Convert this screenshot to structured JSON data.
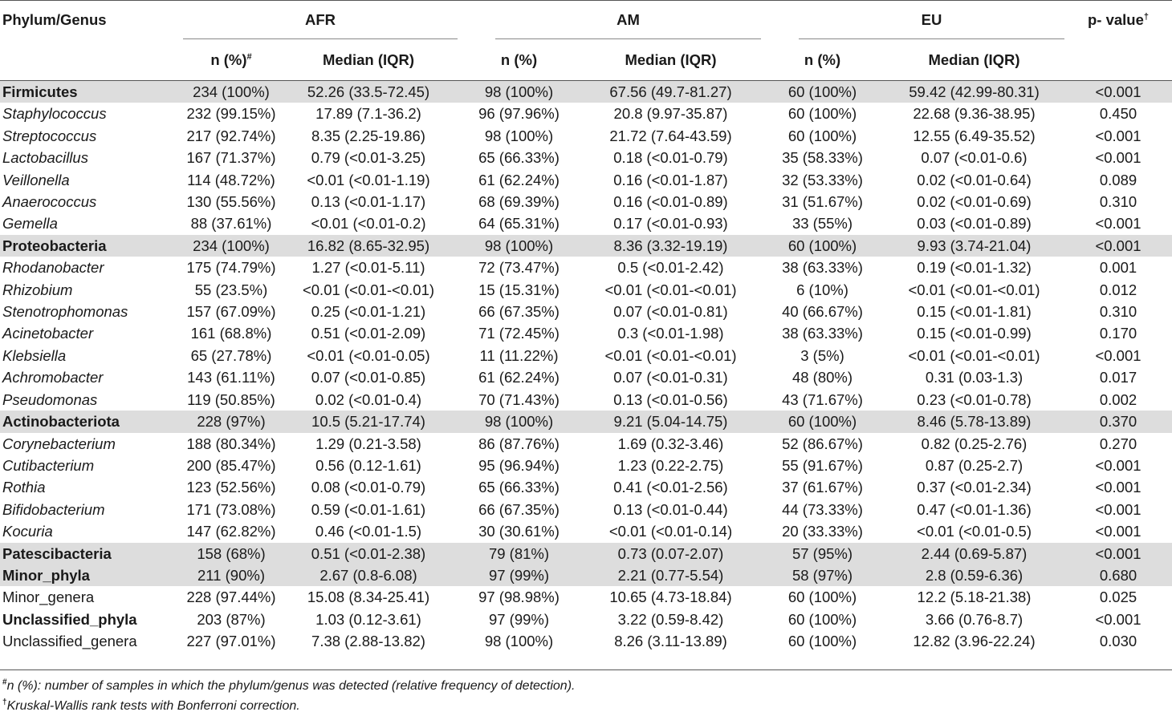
{
  "header": {
    "phylum_genus": "Phylum/Genus",
    "groups": [
      "AFR",
      "AM",
      "EU"
    ],
    "p_value": "p- value",
    "p_value_mark": "†",
    "n_pct_first": "n (%)",
    "n_pct_mark": "#",
    "n_pct": "n (%)",
    "median": "Median (IQR)"
  },
  "rows": [
    {
      "type": "phylum",
      "name": "Firmicutes",
      "afr_n": "234 (100%)",
      "afr_m": "52.26 (33.5-72.45)",
      "am_n": "98 (100%)",
      "am_m": "67.56 (49.7-81.27)",
      "eu_n": "60 (100%)",
      "eu_m": "59.42 (42.99-80.31)",
      "p": "<0.001"
    },
    {
      "type": "genus",
      "name": "Staphylococcus",
      "afr_n": "232 (99.15%)",
      "afr_m": "17.89 (7.1-36.2)",
      "am_n": "96 (97.96%)",
      "am_m": "20.8 (9.97-35.87)",
      "eu_n": "60 (100%)",
      "eu_m": "22.68 (9.36-38.95)",
      "p": "0.450"
    },
    {
      "type": "genus",
      "name": "Streptococcus",
      "afr_n": "217 (92.74%)",
      "afr_m": "8.35 (2.25-19.86)",
      "am_n": "98 (100%)",
      "am_m": "21.72 (7.64-43.59)",
      "eu_n": "60 (100%)",
      "eu_m": "12.55 (6.49-35.52)",
      "p": "<0.001"
    },
    {
      "type": "genus",
      "name": "Lactobacillus",
      "afr_n": "167 (71.37%)",
      "afr_m": "0.79 (<0.01-3.25)",
      "am_n": "65 (66.33%)",
      "am_m": "0.18 (<0.01-0.79)",
      "eu_n": "35 (58.33%)",
      "eu_m": "0.07 (<0.01-0.6)",
      "p": "<0.001"
    },
    {
      "type": "genus",
      "name": "Veillonella",
      "afr_n": "114 (48.72%)",
      "afr_m": "<0.01 (<0.01-1.19)",
      "am_n": "61 (62.24%)",
      "am_m": "0.16 (<0.01-1.87)",
      "eu_n": "32 (53.33%)",
      "eu_m": "0.02 (<0.01-0.64)",
      "p": "0.089"
    },
    {
      "type": "genus",
      "name": "Anaerococcus",
      "afr_n": "130 (55.56%)",
      "afr_m": "0.13 (<0.01-1.17)",
      "am_n": "68 (69.39%)",
      "am_m": "0.16 (<0.01-0.89)",
      "eu_n": "31 (51.67%)",
      "eu_m": "0.02 (<0.01-0.69)",
      "p": "0.310"
    },
    {
      "type": "genus",
      "name": "Gemella",
      "afr_n": "88 (37.61%)",
      "afr_m": "<0.01 (<0.01-0.2)",
      "am_n": "64 (65.31%)",
      "am_m": "0.17 (<0.01-0.93)",
      "eu_n": "33 (55%)",
      "eu_m": "0.03 (<0.01-0.89)",
      "p": "<0.001"
    },
    {
      "type": "phylum",
      "name": "Proteobacteria",
      "afr_n": "234 (100%)",
      "afr_m": "16.82 (8.65-32.95)",
      "am_n": "98 (100%)",
      "am_m": "8.36 (3.32-19.19)",
      "eu_n": "60 (100%)",
      "eu_m": "9.93 (3.74-21.04)",
      "p": "<0.001"
    },
    {
      "type": "genus",
      "name": "Rhodanobacter",
      "afr_n": "175 (74.79%)",
      "afr_m": "1.27 (<0.01-5.11)",
      "am_n": "72 (73.47%)",
      "am_m": "0.5 (<0.01-2.42)",
      "eu_n": "38 (63.33%)",
      "eu_m": "0.19 (<0.01-1.32)",
      "p": "0.001"
    },
    {
      "type": "genus",
      "name": "Rhizobium",
      "afr_n": "55 (23.5%)",
      "afr_m": "<0.01 (<0.01-<0.01)",
      "am_n": "15 (15.31%)",
      "am_m": "<0.01 (<0.01-<0.01)",
      "eu_n": "6 (10%)",
      "eu_m": "<0.01 (<0.01-<0.01)",
      "p": "0.012"
    },
    {
      "type": "genus",
      "name": "Stenotrophomonas",
      "afr_n": "157 (67.09%)",
      "afr_m": "0.25 (<0.01-1.21)",
      "am_n": "66 (67.35%)",
      "am_m": "0.07 (<0.01-0.81)",
      "eu_n": "40 (66.67%)",
      "eu_m": "0.15 (<0.01-1.81)",
      "p": "0.310"
    },
    {
      "type": "genus",
      "name": "Acinetobacter",
      "afr_n": "161 (68.8%)",
      "afr_m": "0.51 (<0.01-2.09)",
      "am_n": "71 (72.45%)",
      "am_m": "0.3 (<0.01-1.98)",
      "eu_n": "38 (63.33%)",
      "eu_m": "0.15 (<0.01-0.99)",
      "p": "0.170"
    },
    {
      "type": "genus",
      "name": "Klebsiella",
      "afr_n": "65 (27.78%)",
      "afr_m": "<0.01 (<0.01-0.05)",
      "am_n": "11 (11.22%)",
      "am_m": "<0.01 (<0.01-<0.01)",
      "eu_n": "3 (5%)",
      "eu_m": "<0.01 (<0.01-<0.01)",
      "p": "<0.001"
    },
    {
      "type": "genus",
      "name": "Achromobacter",
      "afr_n": "143 (61.11%)",
      "afr_m": "0.07 (<0.01-0.85)",
      "am_n": "61 (62.24%)",
      "am_m": "0.07 (<0.01-0.31)",
      "eu_n": "48 (80%)",
      "eu_m": "0.31 (0.03-1.3)",
      "p": "0.017"
    },
    {
      "type": "genus",
      "name": "Pseudomonas",
      "afr_n": "119 (50.85%)",
      "afr_m": "0.02 (<0.01-0.4)",
      "am_n": "70 (71.43%)",
      "am_m": "0.13 (<0.01-0.56)",
      "eu_n": "43 (71.67%)",
      "eu_m": "0.23 (<0.01-0.78)",
      "p": "0.002"
    },
    {
      "type": "phylum",
      "name": "Actinobacteriota",
      "afr_n": "228 (97%)",
      "afr_m": "10.5 (5.21-17.74)",
      "am_n": "98 (100%)",
      "am_m": "9.21 (5.04-14.75)",
      "eu_n": "60 (100%)",
      "eu_m": "8.46 (5.78-13.89)",
      "p": "0.370"
    },
    {
      "type": "genus",
      "name": "Corynebacterium",
      "afr_n": "188 (80.34%)",
      "afr_m": "1.29 (0.21-3.58)",
      "am_n": "86 (87.76%)",
      "am_m": "1.69 (0.32-3.46)",
      "eu_n": "52 (86.67%)",
      "eu_m": "0.82 (0.25-2.76)",
      "p": "0.270"
    },
    {
      "type": "genus",
      "name": "Cutibacterium",
      "afr_n": "200 (85.47%)",
      "afr_m": "0.56 (0.12-1.61)",
      "am_n": "95 (96.94%)",
      "am_m": "1.23 (0.22-2.75)",
      "eu_n": "55 (91.67%)",
      "eu_m": "0.87 (0.25-2.7)",
      "p": "<0.001"
    },
    {
      "type": "genus",
      "name": "Rothia",
      "afr_n": "123 (52.56%)",
      "afr_m": "0.08 (<0.01-0.79)",
      "am_n": "65 (66.33%)",
      "am_m": "0.41 (<0.01-2.56)",
      "eu_n": "37 (61.67%)",
      "eu_m": "0.37 (<0.01-2.34)",
      "p": "<0.001"
    },
    {
      "type": "genus",
      "name": "Bifidobacterium",
      "afr_n": "171 (73.08%)",
      "afr_m": "0.59 (<0.01-1.61)",
      "am_n": "66 (67.35%)",
      "am_m": "0.13 (<0.01-0.44)",
      "eu_n": "44 (73.33%)",
      "eu_m": "0.47 (<0.01-1.36)",
      "p": "<0.001"
    },
    {
      "type": "genus",
      "name": "Kocuria",
      "afr_n": "147 (62.82%)",
      "afr_m": "0.46 (<0.01-1.5)",
      "am_n": "30 (30.61%)",
      "am_m": "<0.01 (<0.01-0.14)",
      "eu_n": "20 (33.33%)",
      "eu_m": "<0.01 (<0.01-0.5)",
      "p": "<0.001"
    },
    {
      "type": "phylum",
      "name": "Patescibacteria",
      "afr_n": "158 (68%)",
      "afr_m": "0.51 (<0.01-2.38)",
      "am_n": "79 (81%)",
      "am_m": "0.73 (0.07-2.07)",
      "eu_n": "57 (95%)",
      "eu_m": "2.44 (0.69-5.87)",
      "p": "<0.001"
    },
    {
      "type": "phylum",
      "name": "Minor_phyla",
      "afr_n": "211 (90%)",
      "afr_m": "2.67 (0.8-6.08)",
      "am_n": "97 (99%)",
      "am_m": "2.21 (0.77-5.54)",
      "eu_n": "58 (97%)",
      "eu_m": "2.8 (0.59-6.36)",
      "p": "0.680"
    },
    {
      "type": "plain",
      "name": "Minor_genera",
      "afr_n": "228 (97.44%)",
      "afr_m": "15.08 (8.34-25.41)",
      "am_n": "97 (98.98%)",
      "am_m": "10.65 (4.73-18.84)",
      "eu_n": "60 (100%)",
      "eu_m": "12.2 (5.18-21.38)",
      "p": "0.025"
    },
    {
      "type": "bold-name",
      "name": "Unclassified_phyla",
      "afr_n": "203 (87%)",
      "afr_m": "1.03 (0.12-3.61)",
      "am_n": "97 (99%)",
      "am_m": "3.22 (0.59-8.42)",
      "eu_n": "60 (100%)",
      "eu_m": "3.66 (0.76-8.7)",
      "p": "<0.001"
    },
    {
      "type": "plain",
      "name": "Unclassified_genera",
      "afr_n": "227 (97.01%)",
      "afr_m": "7.38 (2.88-13.82)",
      "am_n": "98 (100%)",
      "am_m": "8.26 (3.11-13.89)",
      "eu_n": "60 (100%)",
      "eu_m": "12.82 (3.96-22.24)",
      "p": "0.030"
    }
  ],
  "footnotes": [
    {
      "mark": "#",
      "text": "n (%): number of samples in which the phylum/genus was detected (relative frequency of detection)."
    },
    {
      "mark": "†",
      "text": "Kruskal-Wallis rank tests with Bonferroni correction."
    }
  ]
}
